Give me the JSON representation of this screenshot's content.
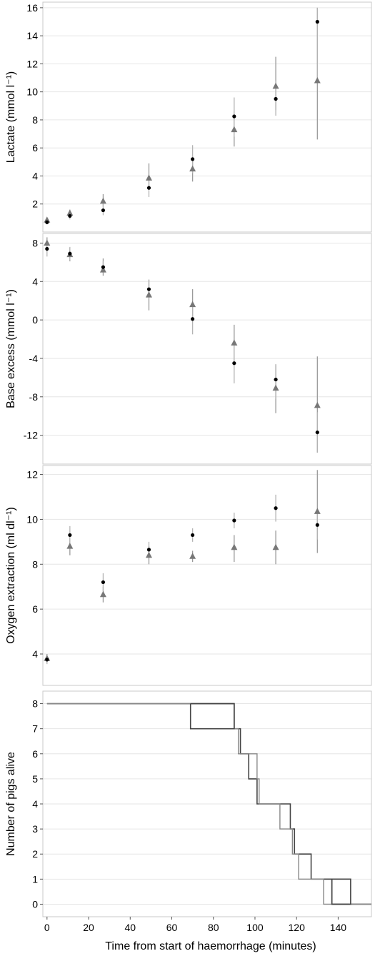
{
  "chart_data": [
    {
      "type": "scatter",
      "ylabel": "Lactate (mmol l⁻¹)",
      "ylim": [
        0,
        16.4
      ],
      "yticks": [
        2,
        4,
        6,
        8,
        10,
        12,
        14,
        16
      ],
      "x": [
        0,
        11,
        27,
        49,
        70,
        90,
        110,
        130
      ],
      "series": [
        {
          "marker": "triangle",
          "values": [
            0.85,
            1.35,
            2.2,
            3.85,
            4.5,
            7.3,
            10.4,
            10.8
          ],
          "err_low": [
            0.65,
            1.1,
            1.8,
            3.2,
            3.6,
            6.1,
            8.7,
            6.6
          ],
          "err_high": [
            1.0,
            1.6,
            2.7,
            4.9,
            5.4,
            8.6,
            12.5,
            16.0
          ]
        },
        {
          "marker": "circle",
          "values": [
            0.7,
            1.15,
            1.55,
            3.15,
            5.2,
            8.25,
            9.5,
            15.0
          ],
          "err_low": [
            0.55,
            0.9,
            1.2,
            2.5,
            4.2,
            6.8,
            8.3,
            10.8
          ],
          "err_high": [
            0.85,
            1.4,
            2.2,
            3.8,
            6.2,
            9.6,
            10.8,
            16.0
          ]
        }
      ]
    },
    {
      "type": "scatter",
      "ylabel": "Base excess (mmol l⁻¹)",
      "ylim": [
        -15,
        9
      ],
      "yticks": [
        8,
        4,
        0,
        -4,
        -8,
        -12
      ],
      "x": [
        0,
        11,
        27,
        49,
        70,
        90,
        110,
        130
      ],
      "series": [
        {
          "marker": "triangle",
          "values": [
            8.0,
            6.8,
            5.2,
            2.6,
            1.6,
            -2.4,
            -7.1,
            -8.9
          ],
          "err_low": [
            7.2,
            6.1,
            4.6,
            1.0,
            0.0,
            -4.8,
            -9.7,
            -13.8
          ],
          "err_high": [
            8.6,
            7.5,
            6.4,
            4.2,
            3.2,
            -0.5,
            -4.7,
            -3.8
          ]
        },
        {
          "marker": "circle",
          "values": [
            7.4,
            6.9,
            5.5,
            3.2,
            0.1,
            -4.5,
            -6.2,
            -11.7
          ],
          "err_low": [
            6.6,
            6.2,
            4.9,
            2.2,
            -1.5,
            -6.6,
            -8.2,
            -13.8
          ],
          "err_high": [
            8.2,
            7.6,
            6.1,
            4.2,
            1.7,
            -2.4,
            -4.6,
            -9.6
          ]
        }
      ]
    },
    {
      "type": "scatter",
      "ylabel": "Oxygen extraction (ml dl⁻¹)",
      "ylim": [
        2.6,
        12.4
      ],
      "yticks": [
        4,
        6,
        8,
        10,
        12
      ],
      "x": [
        0,
        11,
        27,
        49,
        70,
        90,
        110,
        130
      ],
      "series": [
        {
          "marker": "triangle",
          "values": [
            3.8,
            8.8,
            6.65,
            8.4,
            8.35,
            8.75,
            8.75,
            10.35
          ],
          "err_low": [
            3.6,
            8.4,
            6.3,
            8.0,
            8.1,
            8.1,
            8.0,
            8.5
          ],
          "err_high": [
            4.0,
            9.2,
            7.0,
            8.8,
            8.6,
            9.3,
            9.5,
            12.2
          ]
        },
        {
          "marker": "circle",
          "values": [
            3.75,
            9.3,
            7.2,
            8.65,
            9.3,
            9.95,
            10.5,
            9.75
          ],
          "err_low": [
            3.55,
            8.9,
            6.8,
            8.3,
            9.0,
            9.6,
            9.9,
            9.1
          ],
          "err_high": [
            3.95,
            9.7,
            7.6,
            9.0,
            9.6,
            10.3,
            11.1,
            10.4
          ]
        }
      ]
    },
    {
      "type": "line",
      "xlabel": "Time from start of haemorrhage (minutes)",
      "ylabel": "Number of pigs alive",
      "xlim": [
        -2,
        156
      ],
      "ylim": [
        -0.5,
        8.5
      ],
      "xticks": [
        0,
        20,
        40,
        60,
        80,
        100,
        120,
        140
      ],
      "yticks": [
        0,
        1,
        2,
        3,
        4,
        5,
        6,
        7,
        8
      ],
      "series": [
        {
          "line": "dark",
          "steps": [
            [
              0,
              8
            ],
            [
              90,
              7
            ],
            [
              93,
              6
            ],
            [
              97,
              5
            ],
            [
              101,
              4
            ],
            [
              117,
              3
            ],
            [
              119,
              2
            ],
            [
              127,
              1
            ],
            [
              137,
              0
            ],
            [
              156,
              0
            ]
          ]
        },
        {
          "line": "light",
          "steps": [
            [
              0,
              8
            ],
            [
              69,
              7
            ],
            [
              92,
              6
            ],
            [
              101,
              5
            ],
            [
              102,
              4
            ],
            [
              112,
              3
            ],
            [
              118,
              2
            ],
            [
              121,
              1
            ],
            [
              133,
              0
            ],
            [
              156,
              0
            ]
          ]
        },
        {
          "line": "outline",
          "steps": [
            [
              69,
              8
            ],
            [
              90,
              8
            ],
            [
              90,
              7
            ],
            [
              69,
              7
            ],
            [
              69,
              8
            ]
          ]
        },
        {
          "line": "outline",
          "steps": [
            [
              137,
              1
            ],
            [
              146,
              1
            ],
            [
              146,
              0
            ],
            [
              137,
              0
            ],
            [
              137,
              1
            ]
          ]
        }
      ]
    }
  ]
}
